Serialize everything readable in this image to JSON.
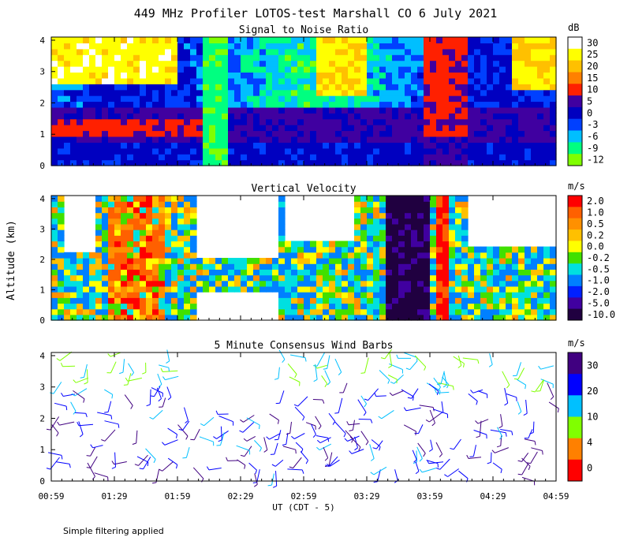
{
  "chart_data": [
    {
      "type": "heatmap",
      "title": "449 MHz Profiler LOTOS-test Marshall CO  6 July 2021",
      "subtitle": "Signal to Noise Ratio",
      "xlabel": "UT  (CDT - 5)",
      "ylabel": "Altitude (km)",
      "x_ticks": [
        "00:59",
        "01:29",
        "01:59",
        "02:29",
        "02:59",
        "03:29",
        "03:59",
        "04:29",
        "04:59"
      ],
      "y_ticks": [
        "0",
        "1",
        "2",
        "3",
        "4"
      ],
      "ylim": [
        0,
        4.1
      ],
      "colorbar_unit": "dB",
      "colorbar_levels": [
        -12,
        -9,
        -6,
        -3,
        0,
        5,
        10,
        15,
        20,
        25,
        30
      ],
      "colorbar_labels": [
        "30",
        "25",
        "20",
        "15",
        "10",
        "5",
        "0",
        "-3",
        "-6",
        "-9",
        "-12"
      ],
      "colors": [
        "#80ff00",
        "#00ff80",
        "#00bfff",
        "#0040ff",
        "#0000c0",
        "#4000a0",
        "#ff2000",
        "#ff8000",
        "#ffc000",
        "#ffff00",
        "#ffffff"
      ]
    },
    {
      "type": "heatmap",
      "subtitle": "Vertical Velocity",
      "y_ticks": [
        "0",
        "1",
        "2",
        "3",
        "4"
      ],
      "ylim": [
        0,
        4.1
      ],
      "colorbar_unit": "m/s",
      "colorbar_labels": [
        "2.0",
        "1.0",
        "0.5",
        "0.2",
        "0.0",
        "-0.2",
        "-0.5",
        "-1.0",
        "-2.0",
        "-5.0",
        "-10.0"
      ],
      "colors": [
        "#ff0000",
        "#ff6000",
        "#ff9000",
        "#ffc000",
        "#ffff00",
        "#40e000",
        "#00e0e0",
        "#0080ff",
        "#0020ff",
        "#4000a0",
        "#200040"
      ]
    },
    {
      "type": "scatter",
      "subtitle": "5 Minute Consensus Wind Barbs",
      "y_ticks": [
        "0",
        "1",
        "2",
        "3",
        "4"
      ],
      "ylim": [
        0,
        4.1
      ],
      "colorbar_unit": "m/s",
      "colorbar_labels": [
        "30",
        "20",
        "10",
        "4",
        "0"
      ],
      "colors": [
        "#ff0000",
        "#ff8000",
        "#80ff00",
        "#00c0ff",
        "#0000ff",
        "#400080"
      ]
    }
  ],
  "footer": {
    "note": "Simple filtering applied"
  }
}
